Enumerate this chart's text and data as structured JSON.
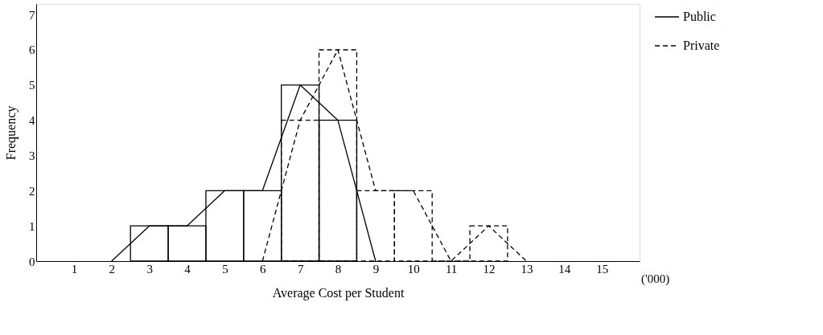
{
  "chart_data": {
    "type": "histogram",
    "xlabel": "Average Cost per Student",
    "ylabel": "Frequency",
    "annotations": [
      "('000)"
    ],
    "xlim": [
      0,
      16
    ],
    "xticks": [
      1,
      2,
      3,
      4,
      5,
      6,
      7,
      8,
      9,
      10,
      11,
      12,
      13,
      14,
      15
    ],
    "ylim": [
      0,
      7.3
    ],
    "yticks": [
      0,
      1,
      2,
      3,
      4,
      5,
      6,
      7
    ],
    "grid": false,
    "legend": "right",
    "series": [
      {
        "color": "#000000",
        "line_style": "solid",
        "bins": [
          2.5,
          3.5,
          4.5,
          5.5,
          6.5,
          7.5,
          8.5
        ],
        "values": [
          1,
          1,
          2,
          2,
          5,
          4
        ]
      },
      {
        "color": "#000000",
        "line_style": "dashed",
        "bins": [
          6.5,
          7.5,
          8.5,
          9.5,
          10.5,
          11.5,
          12.5
        ],
        "values": [
          4,
          6,
          2,
          2,
          0,
          1
        ]
      },
      {
        "type": "line",
        "name": "Public",
        "color": "#000000",
        "line_style": "solid",
        "x": [
          2,
          3,
          4,
          5,
          6,
          7,
          8,
          9
        ],
        "values": [
          0,
          1,
          1,
          2,
          2,
          5,
          4,
          0
        ]
      },
      {
        "type": "line",
        "name": "Private",
        "color": "#000000",
        "line_style": "dashed",
        "x": [
          6,
          7,
          8,
          9,
          10,
          11,
          12,
          13
        ],
        "values": [
          0,
          4,
          6,
          2,
          2,
          0,
          1,
          0
        ]
      }
    ]
  }
}
